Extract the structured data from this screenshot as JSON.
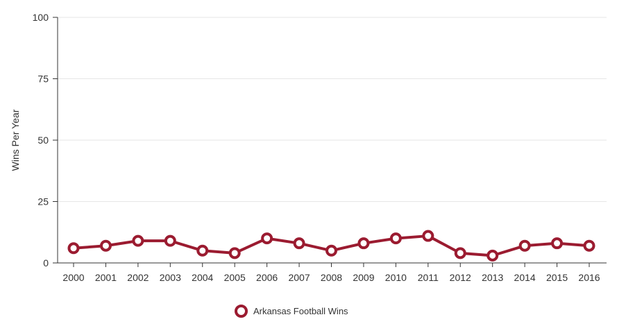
{
  "chart_data": {
    "type": "line",
    "title": "",
    "xlabel": "",
    "ylabel": "Wins Per Year",
    "categories": [
      "2000",
      "2001",
      "2002",
      "2003",
      "2004",
      "2005",
      "2006",
      "2007",
      "2008",
      "2009",
      "2010",
      "2011",
      "2012",
      "2013",
      "2014",
      "2015",
      "2016"
    ],
    "series": [
      {
        "name": "Arkansas Football Wins",
        "values": [
          6,
          7,
          9,
          9,
          5,
          4,
          10,
          8,
          5,
          8,
          10,
          11,
          4,
          3,
          7,
          8,
          7
        ]
      }
    ],
    "ylim": [
      0,
      100
    ],
    "yticks": [
      0,
      25,
      50,
      75,
      100
    ],
    "grid": true,
    "legend_position": "bottom-center"
  },
  "colors": {
    "series": "#9b1b30",
    "grid": "#e6e6e6",
    "axis": "#333333"
  }
}
